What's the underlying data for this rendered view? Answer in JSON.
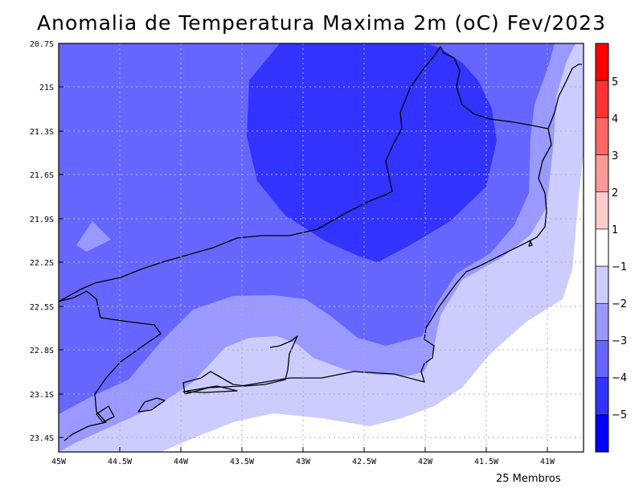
{
  "title": "Anomalia de Temperatura Maxima 2m (oC) Fev/2023",
  "footer": "25 Membros",
  "map": {
    "lon_range": [
      -45,
      -40.7
    ],
    "lat_range": [
      -23.5,
      -20.7
    ],
    "grid": true,
    "y_ticks": [
      {
        "value": -20.7,
        "label": "20.7S"
      },
      {
        "value": -21.0,
        "label": "21S"
      },
      {
        "value": -21.3,
        "label": "21.3S"
      },
      {
        "value": -21.6,
        "label": "21.6S"
      },
      {
        "value": -21.9,
        "label": "21.9S"
      },
      {
        "value": -22.2,
        "label": "22.2S"
      },
      {
        "value": -22.5,
        "label": "22.5S"
      },
      {
        "value": -22.8,
        "label": "22.8S"
      },
      {
        "value": -23.1,
        "label": "23.1S"
      },
      {
        "value": -23.4,
        "label": "23.4S"
      }
    ],
    "x_ticks": [
      {
        "value": -45.0,
        "label": "45W"
      },
      {
        "value": -44.5,
        "label": "44.5W"
      },
      {
        "value": -44.0,
        "label": "44W"
      },
      {
        "value": -43.5,
        "label": "43.5W"
      },
      {
        "value": -43.0,
        "label": "43W"
      },
      {
        "value": -42.5,
        "label": "42.5W"
      },
      {
        "value": -42.0,
        "label": "42W"
      },
      {
        "value": -41.5,
        "label": "41.5W"
      },
      {
        "value": -41.0,
        "label": "41W"
      }
    ]
  },
  "colorbar": {
    "bins": [
      {
        "color": "#ff0000"
      },
      {
        "color": "#ff3333"
      },
      {
        "color": "#ff6666"
      },
      {
        "color": "#ff9999"
      },
      {
        "color": "#ffcccc"
      },
      {
        "color": "#ffffff"
      },
      {
        "color": "#ccccff"
      },
      {
        "color": "#9999ff"
      },
      {
        "color": "#6666ff"
      },
      {
        "color": "#3333ff"
      },
      {
        "color": "#0000ff"
      }
    ],
    "labels": [
      "5",
      "4",
      "3",
      "2",
      "1",
      "−1",
      "−2",
      "−3",
      "−4",
      "−5"
    ]
  },
  "levels_colors": {
    "lt_-1": "#ccccff",
    "lt_-2": "#9999ff",
    "lt_-3": "#6666ff",
    "lt_-4": "#3333ff"
  }
}
